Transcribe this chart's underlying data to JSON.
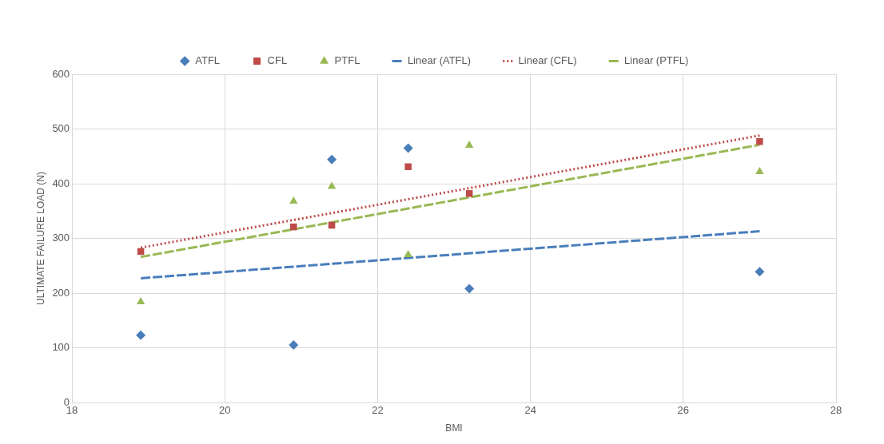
{
  "chart_data": {
    "type": "scatter",
    "xlabel": "BMI",
    "ylabel": "ULTIMATE FAILURE LOAD (N)",
    "xlim": [
      18,
      28
    ],
    "xticks": [
      18,
      20,
      22,
      24,
      26,
      28
    ],
    "ylim": [
      0,
      600
    ],
    "yticks": [
      0,
      100,
      200,
      300,
      400,
      500,
      600
    ],
    "grid": true,
    "legend": "top",
    "series": [
      {
        "name": "ATFL",
        "type": "scatter",
        "marker": "diamond",
        "color": "#4a7ebb",
        "x": [
          18.9,
          20.9,
          21.4,
          22.4,
          23.2,
          27.0
        ],
        "values": [
          123,
          105,
          444,
          465,
          208,
          239
        ]
      },
      {
        "name": "CFL",
        "type": "scatter",
        "marker": "square",
        "color": "#be4b48",
        "x": [
          18.9,
          20.9,
          21.4,
          22.4,
          23.2,
          27.0
        ],
        "values": [
          276,
          321,
          324,
          431,
          382,
          477
        ]
      },
      {
        "name": "PTFL",
        "type": "scatter",
        "marker": "triangle",
        "color": "#98b954",
        "x": [
          18.9,
          20.9,
          21.4,
          22.4,
          23.2,
          27.0
        ],
        "values": [
          184,
          368,
          395,
          270,
          470,
          422
        ]
      },
      {
        "name": "Linear (ATFL)",
        "type": "line",
        "line_style": "dashed",
        "marker": "none",
        "color": "#4a7ebb",
        "x": [
          18.9,
          27.0
        ],
        "values": [
          227,
          313
        ]
      },
      {
        "name": "Linear (CFL)",
        "type": "line",
        "line_style": "dotted",
        "marker": "none",
        "color": "#be4b48",
        "x": [
          18.9,
          27.0
        ],
        "values": [
          283,
          488
        ]
      },
      {
        "name": "Linear (PTFL)",
        "type": "line",
        "line_style": "dashed",
        "marker": "none",
        "color": "#98b954",
        "x": [
          18.9,
          27.0
        ],
        "values": [
          266,
          471
        ]
      }
    ]
  }
}
